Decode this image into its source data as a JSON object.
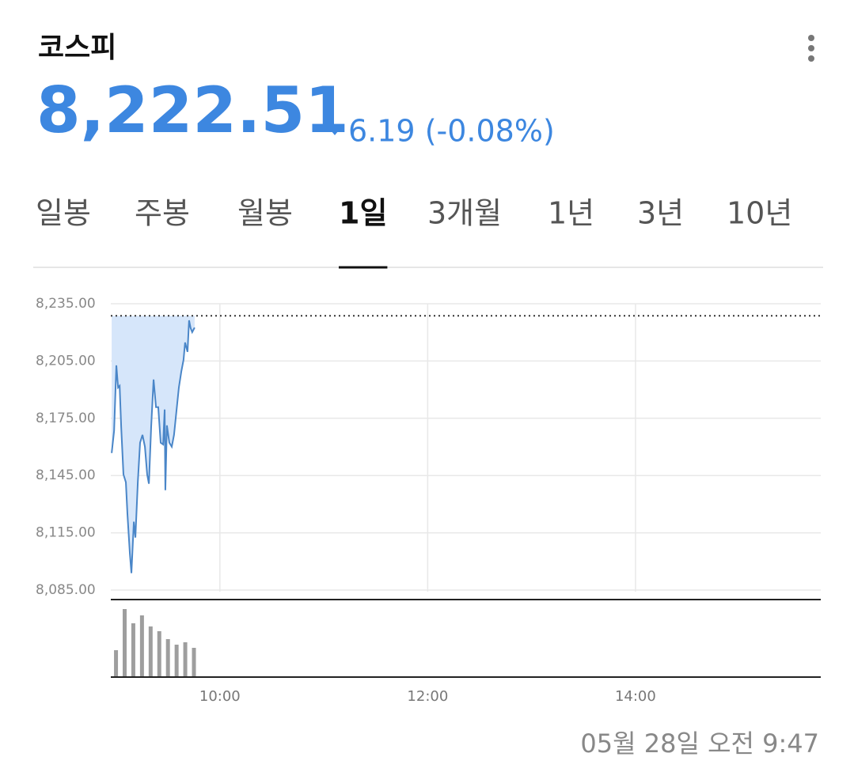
{
  "header": {
    "title": "코스피",
    "price": "8,222.51",
    "change": "6.19 (-0.08%)"
  },
  "tabs": [
    {
      "label": "일봉"
    },
    {
      "label": "주봉"
    },
    {
      "label": "월봉"
    },
    {
      "label": "1일",
      "selected": true
    },
    {
      "label": "3개월"
    },
    {
      "label": "1년"
    },
    {
      "label": "3년"
    },
    {
      "label": "10년"
    }
  ],
  "chart_data": {
    "type": "line",
    "ylim": [
      8085,
      8235
    ],
    "yticks": [
      {
        "value": 8235,
        "label": "8,235.00"
      },
      {
        "value": 8205,
        "label": "8,205.00"
      },
      {
        "value": 8175,
        "label": "8,175.00"
      },
      {
        "value": 8145,
        "label": "8,145.00"
      },
      {
        "value": 8115,
        "label": "8,115.00"
      },
      {
        "value": 8085,
        "label": "8,085.00"
      }
    ],
    "xlim": [
      537,
      947
    ],
    "xticks": [
      {
        "value": 600,
        "label": "10:00"
      },
      {
        "value": 720,
        "label": "12:00"
      },
      {
        "value": 840,
        "label": "14:00"
      }
    ],
    "grid": true,
    "reference": 8228.7,
    "fill_color": "#d6e6fa",
    "x": [
      537.5,
      538.9,
      540.2,
      541.2,
      542.1,
      543,
      544.3,
      545.7,
      546.6,
      548,
      548.9,
      550.3,
      551.2,
      552.6,
      553.9,
      555.3,
      556.7,
      558,
      559,
      560.3,
      561.7,
      563.1,
      564.4,
      565.8,
      567.2,
      568.1,
      568.5,
      569.4,
      570.8,
      572.2,
      573.5,
      574.9,
      576.3,
      577.7,
      579,
      579.9,
      581.3,
      582.2,
      583.1,
      584,
      585.4
    ],
    "series": [
      {
        "color": "#4a86c8",
        "values": [
          8156.8,
          8168.4,
          8202.7,
          8191.1,
          8192.0,
          8170.4,
          8145.6,
          8141.5,
          8124.9,
          8104.2,
          8093.9,
          8120.8,
          8112.5,
          8141.5,
          8162.2,
          8166.3,
          8160.1,
          8145.6,
          8140.7,
          8170.4,
          8195.3,
          8180.8,
          8180.8,
          8162.2,
          8161.3,
          8179.6,
          8137.3,
          8171.3,
          8162.2,
          8160.1,
          8166.3,
          8178.7,
          8191.1,
          8199.4,
          8205.6,
          8214.7,
          8209.8,
          8226.3,
          8222.2,
          8220.1,
          8222.51
        ]
      }
    ],
    "volume": {
      "color": "#9e9e9e",
      "vlim": [
        0,
        98
      ],
      "x": [
        540,
        545,
        550,
        555,
        560,
        565,
        570,
        575,
        580,
        585
      ],
      "values": [
        34,
        86,
        68,
        78,
        64,
        58,
        48,
        41,
        44,
        37
      ]
    }
  },
  "footer": "05월 28일 오전 9:47"
}
